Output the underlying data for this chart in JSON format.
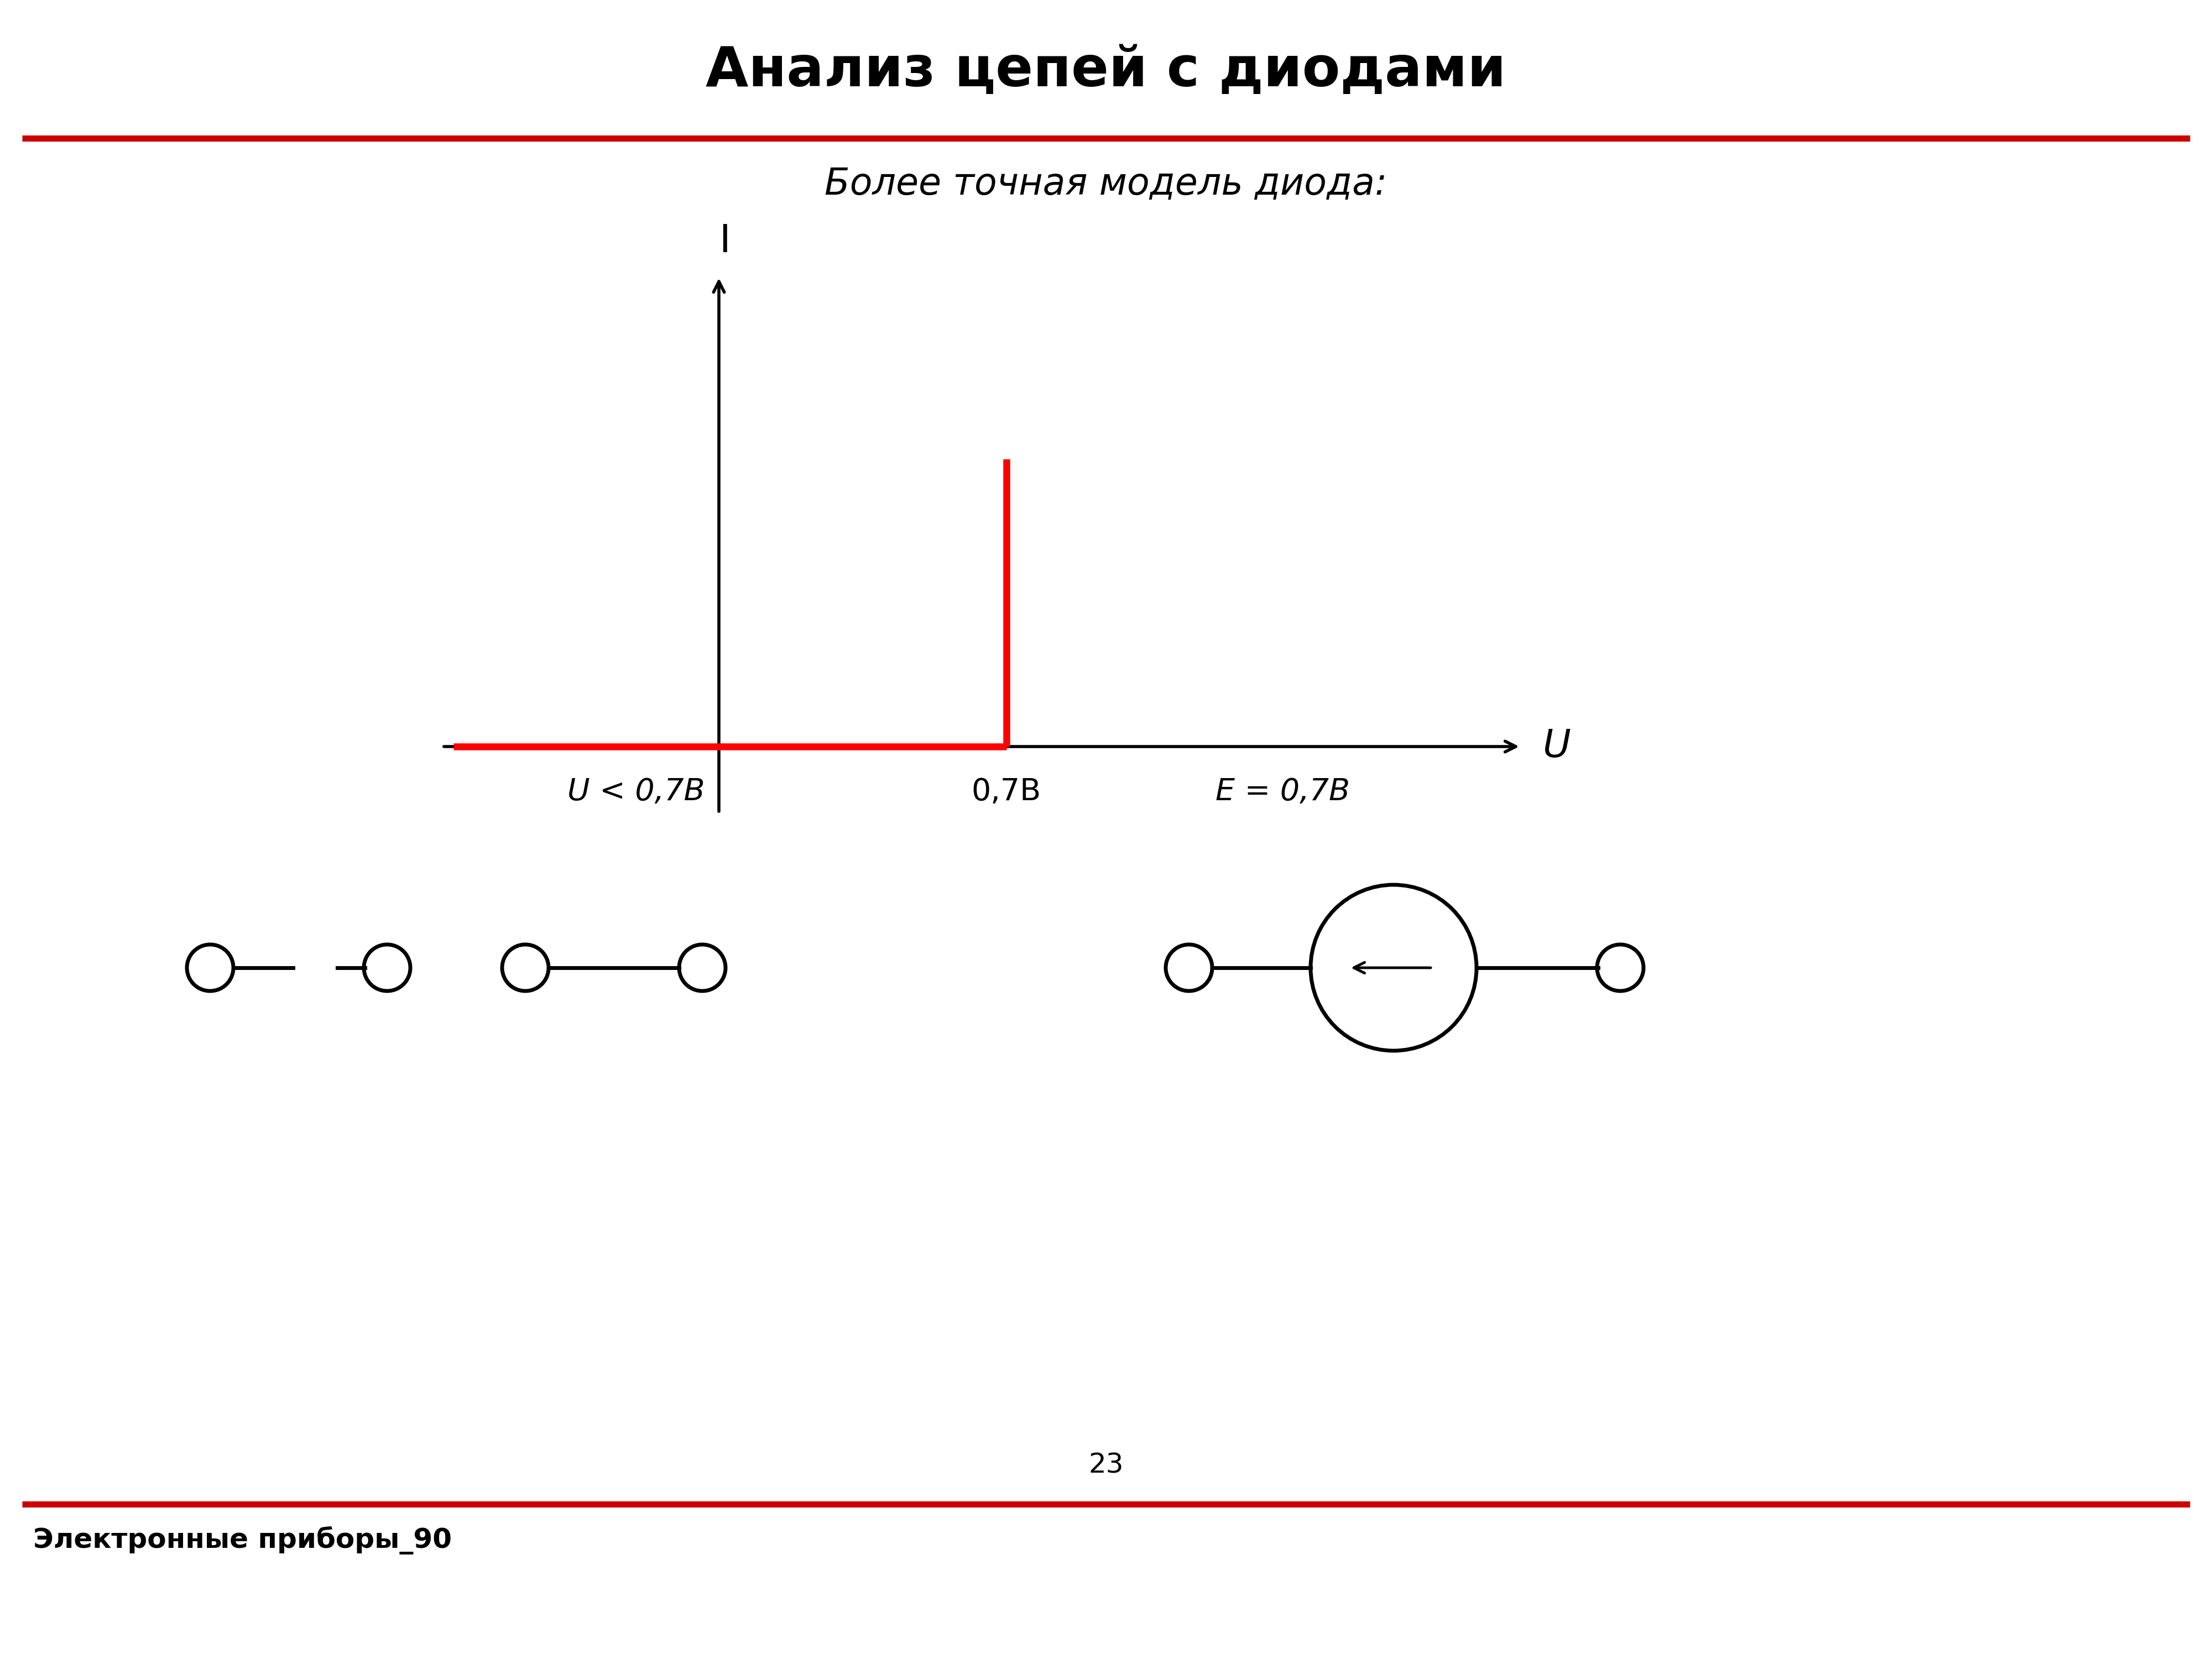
{
  "title": "Анализ цепей с диодами",
  "subtitle": "Более точная модель диода:",
  "footer_text": "Электронные приборы_90",
  "page_number": "23",
  "label_I": "I",
  "label_U": "U",
  "label_07": "0,7В",
  "label_U_less": "U < 0,7В",
  "label_E": "E = 0,7В",
  "red_color": "#cc0000",
  "red_bright": "#ff0000",
  "black_color": "#000000",
  "background_color": "#ffffff",
  "title_fontsize": 72,
  "subtitle_fontsize": 48,
  "footer_fontsize": 36,
  "axis_label_fontsize": 50,
  "tick_label_fontsize": 40,
  "page_number_fontsize": 36
}
